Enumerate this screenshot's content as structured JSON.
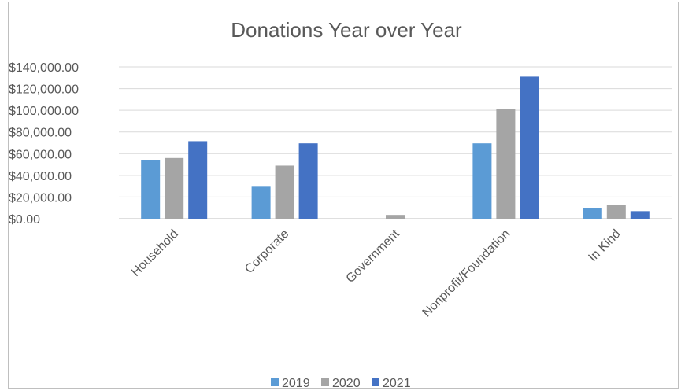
{
  "chart_data": {
    "type": "bar",
    "title": "Donations Year over Year",
    "xlabel": "",
    "ylabel": "",
    "categories": [
      "Household",
      "Corporate",
      "Government",
      "Nonprofit/Foundation",
      "In Kind"
    ],
    "series": [
      {
        "name": "2019",
        "color": "#5b9bd5",
        "values": [
          54000,
          29500,
          0,
          69500,
          9500
        ]
      },
      {
        "name": "2020",
        "color": "#a5a5a5",
        "values": [
          56000,
          49000,
          3500,
          101000,
          13000
        ]
      },
      {
        "name": "2021",
        "color": "#4472c4",
        "values": [
          71500,
          69500,
          0,
          131000,
          7000
        ]
      }
    ],
    "ylim": [
      0,
      140000
    ],
    "yticks": [
      0,
      20000,
      40000,
      60000,
      80000,
      100000,
      120000,
      140000
    ],
    "ytick_labels": [
      "$0.00",
      "$20,000.00",
      "$40,000.00",
      "$60,000.00",
      "$80,000.00",
      "$100,000.00",
      "$120,000.00",
      "$140,000.00"
    ],
    "grid": true,
    "legend_position": "bottom"
  }
}
